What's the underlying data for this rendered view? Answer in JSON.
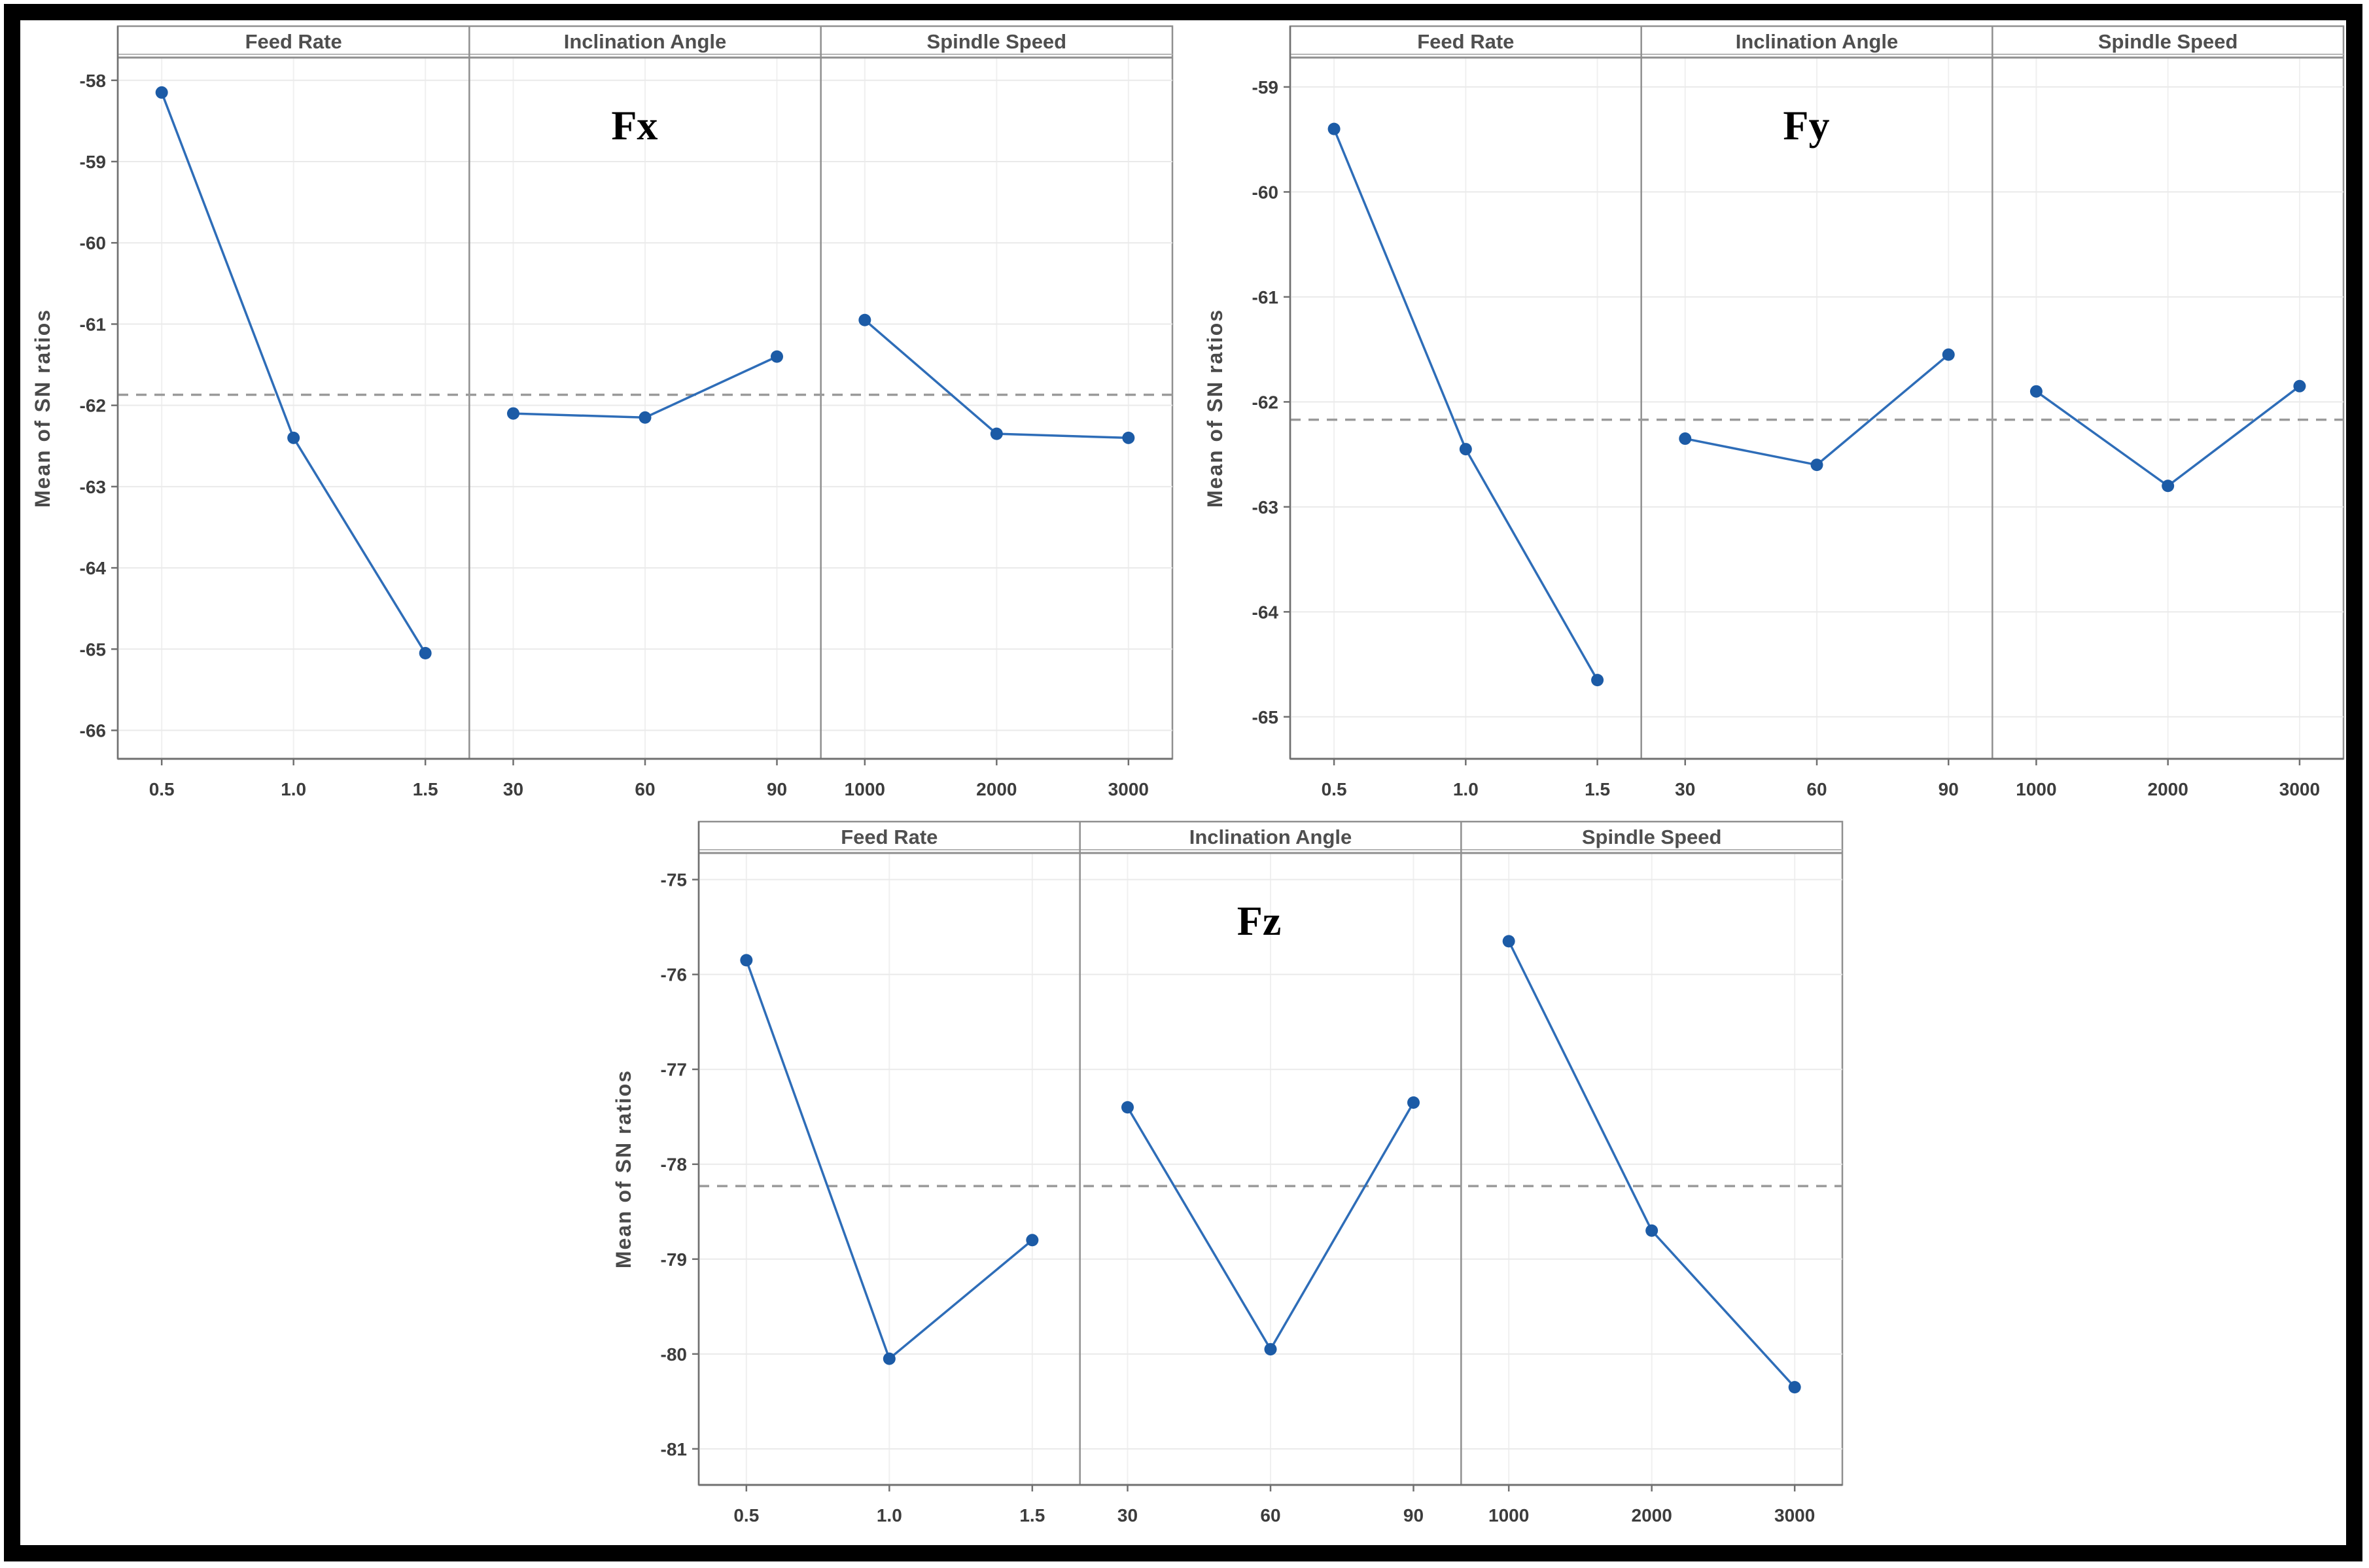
{
  "figure": {
    "background": "#ffffff",
    "frame_color": "#000000",
    "ylabel": "Mean of SN ratios",
    "panel_headers": [
      "Feed Rate",
      "Inclination Angle",
      "Spindle Speed"
    ],
    "colors": {
      "series_line": "#2e6db8",
      "series_marker": "#1c5ba6",
      "mean_dash": "#9a9a9a",
      "axis": "#7a7a7a",
      "tick_text": "#3d3d3d",
      "header_text": "#4f4f4f",
      "grid": "#eaeaea",
      "title_text": "#000000"
    }
  },
  "chart_data": [
    {
      "type": "line",
      "title": "Fx",
      "ylabel": "Mean of SN ratios",
      "grid": true,
      "yticks": [
        -58,
        -59,
        -60,
        -61,
        -62,
        -63,
        -64,
        -65,
        -66
      ],
      "ylim": [
        -57.72,
        -66.35
      ],
      "mean_line": -61.87,
      "panels": [
        {
          "header": "Feed Rate",
          "categories": [
            "0.5",
            "1.0",
            "1.5"
          ],
          "values": [
            -58.15,
            -62.4,
            -65.05
          ]
        },
        {
          "header": "Inclination Angle",
          "categories": [
            "30",
            "60",
            "90"
          ],
          "values": [
            -62.1,
            -62.15,
            -61.4
          ]
        },
        {
          "header": "Spindle Speed",
          "categories": [
            "1000",
            "2000",
            "3000"
          ],
          "values": [
            -60.95,
            -62.35,
            -62.4
          ]
        }
      ]
    },
    {
      "type": "line",
      "title": "Fy",
      "ylabel": "Mean of SN ratios",
      "grid": true,
      "yticks": [
        -59,
        -60,
        -61,
        -62,
        -63,
        -64,
        -65
      ],
      "ylim": [
        -58.72,
        -65.4
      ],
      "mean_line": -62.17,
      "panels": [
        {
          "header": "Feed Rate",
          "categories": [
            "0.5",
            "1.0",
            "1.5"
          ],
          "values": [
            -59.4,
            -62.45,
            -64.65
          ]
        },
        {
          "header": "Inclination Angle",
          "categories": [
            "30",
            "60",
            "90"
          ],
          "values": [
            -62.35,
            -62.6,
            -61.55
          ]
        },
        {
          "header": "Spindle Speed",
          "categories": [
            "1000",
            "2000",
            "3000"
          ],
          "values": [
            -61.9,
            -62.8,
            -61.85
          ]
        }
      ]
    },
    {
      "type": "line",
      "title": "Fz",
      "ylabel": "Mean of SN ratios",
      "grid": true,
      "yticks": [
        -75,
        -76,
        -77,
        -78,
        -79,
        -80,
        -81
      ],
      "ylim": [
        -74.72,
        -81.38
      ],
      "mean_line": -78.23,
      "panels": [
        {
          "header": "Feed Rate",
          "categories": [
            "0.5",
            "1.0",
            "1.5"
          ],
          "values": [
            -75.85,
            -80.05,
            -78.8
          ]
        },
        {
          "header": "Inclination Angle",
          "categories": [
            "30",
            "60",
            "90"
          ],
          "values": [
            -77.4,
            -79.95,
            -77.35
          ]
        },
        {
          "header": "Spindle Speed",
          "categories": [
            "1000",
            "2000",
            "3000"
          ],
          "values": [
            -75.65,
            -78.7,
            -80.35
          ]
        }
      ]
    }
  ]
}
